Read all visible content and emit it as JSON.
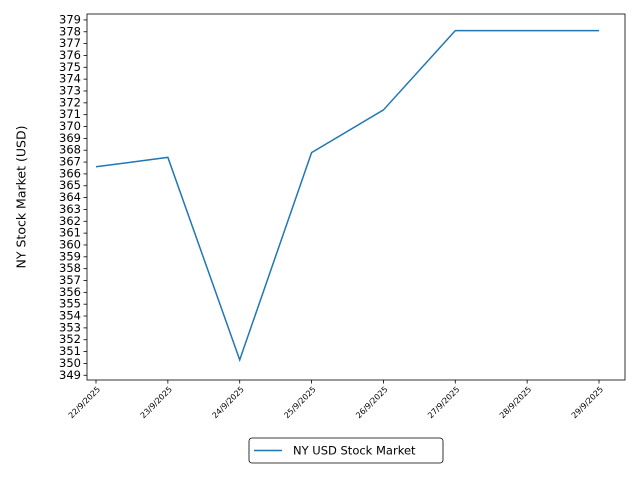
{
  "chart_data": {
    "type": "line",
    "y_label": "NY Stock Market (USD)",
    "categories": [
      "22/9/2025",
      "23/9/2025",
      "24/9/2025",
      "25/9/2025",
      "26/9/2025",
      "27/9/2025",
      "28/9/2025",
      "29/9/2025"
    ],
    "series": [
      {
        "name": "NY USD Stock Market",
        "color": "#1f77b4",
        "values": [
          366.6,
          367.4,
          350.3,
          367.8,
          371.4,
          378.1,
          378.1,
          378.1
        ]
      }
    ],
    "ylim": [
      348.6,
      379.5
    ],
    "yticks": [
      349,
      350,
      351,
      352,
      353,
      354,
      355,
      356,
      357,
      358,
      359,
      360,
      361,
      362,
      363,
      364,
      365,
      366,
      367,
      368,
      369,
      370,
      371,
      372,
      373,
      374,
      375,
      376,
      377,
      378,
      379
    ],
    "legend": "lower center outside"
  }
}
